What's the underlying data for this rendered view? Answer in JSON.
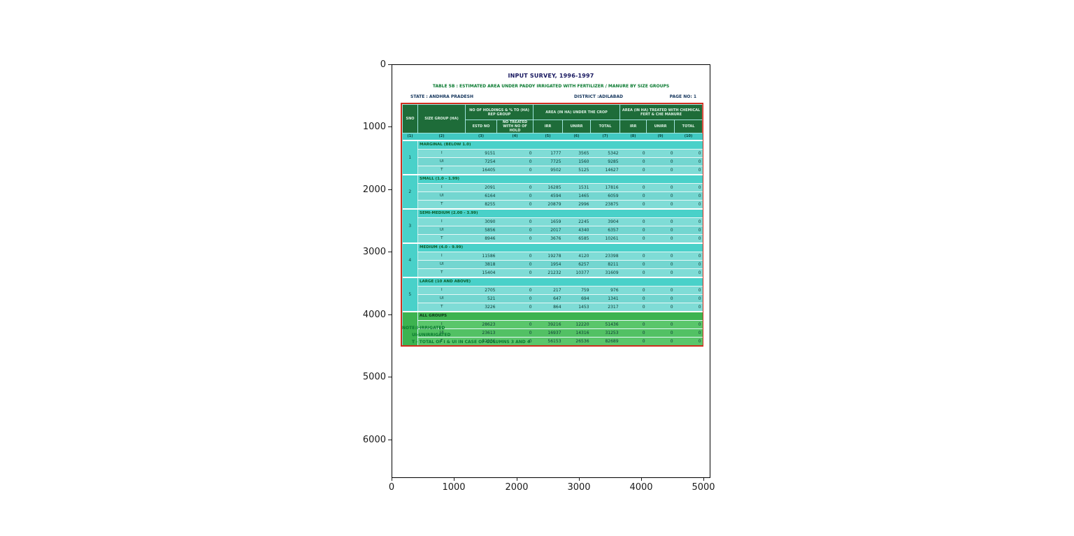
{
  "figure": {
    "x_ticks": [
      "0",
      "1000",
      "2000",
      "3000",
      "4000",
      "5000"
    ],
    "y_ticks": [
      "0",
      "1000",
      "2000",
      "3000",
      "4000",
      "5000",
      "6000"
    ]
  },
  "document": {
    "title": "INPUT SURVEY, 1996-1997",
    "subtitle": "TABLE 5B : ESTIMATED AREA UNDER PADDY IRRIGATED WITH FERTILIZER / MANURE BY SIZE GROUPS",
    "state": "STATE : ANDHRA PRADESH",
    "district": "DISTRICT :ADILABAD",
    "page": "PAGE NO: 1",
    "notes": {
      "line1": "NOTE:I-IRRIGATED",
      "line2": "UI-UNIRRIGATED",
      "line3": "T - TOTAL OF I & UI IN CASE OF COLUMNS 3 AND 4"
    }
  },
  "table": {
    "header": {
      "sno": "SNO",
      "size_group": "SIZE GROUP (HA)",
      "group_holdings": "NO OF HOLDINGS & % TO (HA) REP GROUP",
      "group_area": "AREA (IN HA) UNDER THE CROP",
      "group_treated": "AREA (IN HA) TREATED WITH CHEMICAL FERT & CHE MANURE",
      "sub": [
        "ESTD NO",
        "NO TREATED WITH NO OF HOLD",
        "IRR",
        "UNIRR",
        "TOTAL",
        "IRR",
        "UNIRR",
        "TOTAL"
      ],
      "col_numbers": [
        "(1)",
        "(2)",
        "(3)",
        "(4)",
        "(5)",
        "(6)",
        "(7)",
        "(8)",
        "(9)",
        "(10)"
      ]
    },
    "sections": [
      {
        "sno": "1",
        "label": "MARGINAL (BELOW 1.0)",
        "theme": "teal",
        "rows": [
          {
            "label": "I",
            "values": [
              "9151",
              "0",
              "1777",
              "3565",
              "5342",
              "0",
              "0",
              "0"
            ]
          },
          {
            "label": "UI",
            "values": [
              "7254",
              "0",
              "7725",
              "1560",
              "9285",
              "0",
              "0",
              "0"
            ]
          },
          {
            "label": "T",
            "values": [
              "16405",
              "0",
              "9502",
              "5125",
              "14627",
              "0",
              "0",
              "0"
            ]
          }
        ]
      },
      {
        "sno": "2",
        "label": "SMALL (1.0 - 1.99)",
        "theme": "teal",
        "rows": [
          {
            "label": "I",
            "values": [
              "2091",
              "0",
              "16285",
              "1531",
              "17816",
              "0",
              "0",
              "0"
            ]
          },
          {
            "label": "UI",
            "values": [
              "6164",
              "0",
              "4594",
              "1465",
              "6059",
              "0",
              "0",
              "0"
            ]
          },
          {
            "label": "T",
            "values": [
              "8255",
              "0",
              "20879",
              "2996",
              "23875",
              "0",
              "0",
              "0"
            ]
          }
        ]
      },
      {
        "sno": "3",
        "label": "SEMI-MEDIUM (2.00 - 3.99)",
        "theme": "teal",
        "rows": [
          {
            "label": "I",
            "values": [
              "3090",
              "0",
              "1659",
              "2245",
              "3904",
              "0",
              "0",
              "0"
            ]
          },
          {
            "label": "UI",
            "values": [
              "5856",
              "0",
              "2017",
              "4340",
              "6357",
              "0",
              "0",
              "0"
            ]
          },
          {
            "label": "T",
            "values": [
              "8946",
              "0",
              "3676",
              "6585",
              "10261",
              "0",
              "0",
              "0"
            ]
          }
        ]
      },
      {
        "sno": "4",
        "label": "MEDIUM (4.0 - 9.99)",
        "theme": "teal",
        "rows": [
          {
            "label": "I",
            "values": [
              "11586",
              "0",
              "19278",
              "4120",
              "23398",
              "0",
              "0",
              "0"
            ]
          },
          {
            "label": "UI",
            "values": [
              "3818",
              "0",
              "1954",
              "6257",
              "8211",
              "0",
              "0",
              "0"
            ]
          },
          {
            "label": "T",
            "values": [
              "15404",
              "0",
              "21232",
              "10377",
              "31609",
              "0",
              "0",
              "0"
            ]
          }
        ]
      },
      {
        "sno": "5",
        "label": "LARGE (10 AND ABOVE)",
        "theme": "teal",
        "rows": [
          {
            "label": "I",
            "values": [
              "2705",
              "0",
              "217",
              "759",
              "976",
              "0",
              "0",
              "0"
            ]
          },
          {
            "label": "UI",
            "values": [
              "521",
              "0",
              "647",
              "694",
              "1341",
              "0",
              "0",
              "0"
            ]
          },
          {
            "label": "T",
            "values": [
              "3226",
              "0",
              "864",
              "1453",
              "2317",
              "0",
              "0",
              "0"
            ]
          }
        ]
      },
      {
        "sno": "",
        "label": "ALL GROUPS",
        "theme": "green",
        "rows": [
          {
            "label": "I",
            "values": [
              "28623",
              "0",
              "39216",
              "12220",
              "51436",
              "0",
              "0",
              "0"
            ]
          },
          {
            "label": "UI",
            "values": [
              "23613",
              "0",
              "16937",
              "14316",
              "31253",
              "0",
              "0",
              "0"
            ]
          },
          {
            "label": "T",
            "values": [
              "52236",
              "0",
              "56153",
              "26536",
              "82689",
              "0",
              "0",
              "0"
            ]
          }
        ]
      }
    ]
  },
  "colors": {
    "table_border_red": "#d02d1e",
    "header_green": "#1e6c39",
    "band_teal": "#41c9c2",
    "row_teal": "#7fdcd6",
    "all_groups_green": "#3db350",
    "doc_title_navy": "#16165e",
    "doc_green_text": "#0a7a30"
  }
}
